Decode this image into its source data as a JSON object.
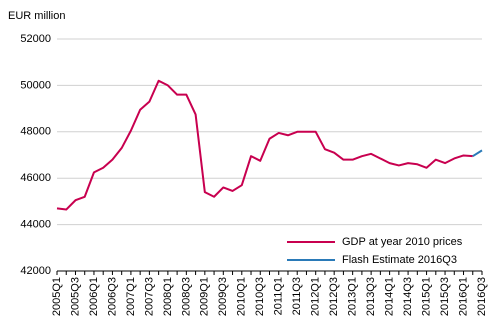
{
  "chart_data": {
    "type": "line",
    "y_label": "EUR million",
    "categories": [
      "2005Q1",
      null,
      "2005Q3",
      null,
      "2006Q1",
      null,
      "2006Q3",
      null,
      "2007Q1",
      null,
      "2007Q3",
      null,
      "2008Q1",
      null,
      "2008Q3",
      null,
      "2009Q1",
      null,
      "2009Q3",
      null,
      "2010Q1",
      null,
      "2010Q3",
      null,
      "2011Q1",
      null,
      "2011Q3",
      null,
      "2012Q1",
      null,
      "2012Q3",
      null,
      "2013Q1",
      null,
      "2013Q3",
      null,
      "2014Q1",
      null,
      "2014Q3",
      null,
      "2015Q1",
      null,
      "2015Q3",
      null,
      "2016Q1",
      null,
      "2016Q3"
    ],
    "series": [
      {
        "name": "GDP at year 2010 prices",
        "color": "#c8004f",
        "values": [
          44700,
          44650,
          45050,
          45200,
          46250,
          46450,
          46800,
          47300,
          48050,
          48950,
          49300,
          50200,
          50000,
          49600,
          49600,
          48750,
          45400,
          45200,
          45600,
          45450,
          45700,
          46950,
          46750,
          47700,
          47950,
          47850,
          48000,
          48000,
          48000,
          47250,
          47100,
          46800,
          46800,
          46950,
          47050,
          46850,
          46650,
          46550,
          46650,
          46600,
          46450,
          46800,
          46650,
          46850,
          46980,
          46950,
          null
        ]
      },
      {
        "name": "Flash Estimate 2016Q3",
        "color": "#2a7ab8",
        "values": [
          null,
          null,
          null,
          null,
          null,
          null,
          null,
          null,
          null,
          null,
          null,
          null,
          null,
          null,
          null,
          null,
          null,
          null,
          null,
          null,
          null,
          null,
          null,
          null,
          null,
          null,
          null,
          null,
          null,
          null,
          null,
          null,
          null,
          null,
          null,
          null,
          null,
          null,
          null,
          null,
          null,
          null,
          null,
          null,
          null,
          46950,
          47200
        ]
      }
    ],
    "ylim": [
      42000,
      52000
    ],
    "yticks": [
      42000,
      44000,
      46000,
      48000,
      50000,
      52000
    ],
    "grid": true,
    "legend": "lower right"
  }
}
